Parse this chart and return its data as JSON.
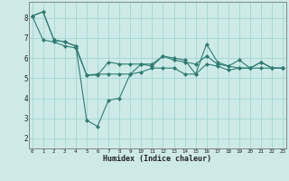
{
  "xlabel": "Humidex (Indice chaleur)",
  "x": [
    0,
    1,
    2,
    3,
    4,
    5,
    6,
    7,
    8,
    9,
    10,
    11,
    12,
    13,
    14,
    15,
    16,
    17,
    18,
    19,
    20,
    21,
    22,
    23
  ],
  "line1": [
    8.1,
    8.3,
    6.9,
    6.8,
    6.6,
    5.15,
    5.2,
    5.2,
    5.2,
    5.2,
    5.3,
    5.5,
    5.5,
    5.5,
    5.2,
    5.2,
    5.7,
    5.6,
    5.4,
    5.5,
    5.5,
    5.5,
    5.5,
    5.5
  ],
  "line2": [
    8.1,
    8.3,
    6.9,
    6.8,
    6.6,
    2.9,
    2.6,
    3.9,
    4.0,
    5.2,
    5.7,
    5.6,
    6.1,
    6.0,
    5.9,
    5.2,
    6.7,
    5.8,
    5.6,
    5.9,
    5.5,
    5.8,
    5.5,
    5.5
  ],
  "line3": [
    8.1,
    6.9,
    6.8,
    6.6,
    6.5,
    5.15,
    5.15,
    5.8,
    5.7,
    5.7,
    5.7,
    5.7,
    6.1,
    5.9,
    5.8,
    5.7,
    6.1,
    5.7,
    5.6,
    5.5,
    5.5,
    5.8,
    5.5,
    5.5
  ],
  "line_color": "#2e7d72",
  "bg_color": "#cdeae7",
  "grid_color": "#a8d8d4",
  "ylim": [
    1.5,
    8.8
  ],
  "xlim": [
    -0.3,
    23.3
  ],
  "yticks": [
    2,
    3,
    4,
    5,
    6,
    7,
    8
  ],
  "xticks": [
    0,
    1,
    2,
    3,
    4,
    5,
    6,
    7,
    8,
    9,
    10,
    11,
    12,
    13,
    14,
    15,
    16,
    17,
    18,
    19,
    20,
    21,
    22,
    23
  ]
}
